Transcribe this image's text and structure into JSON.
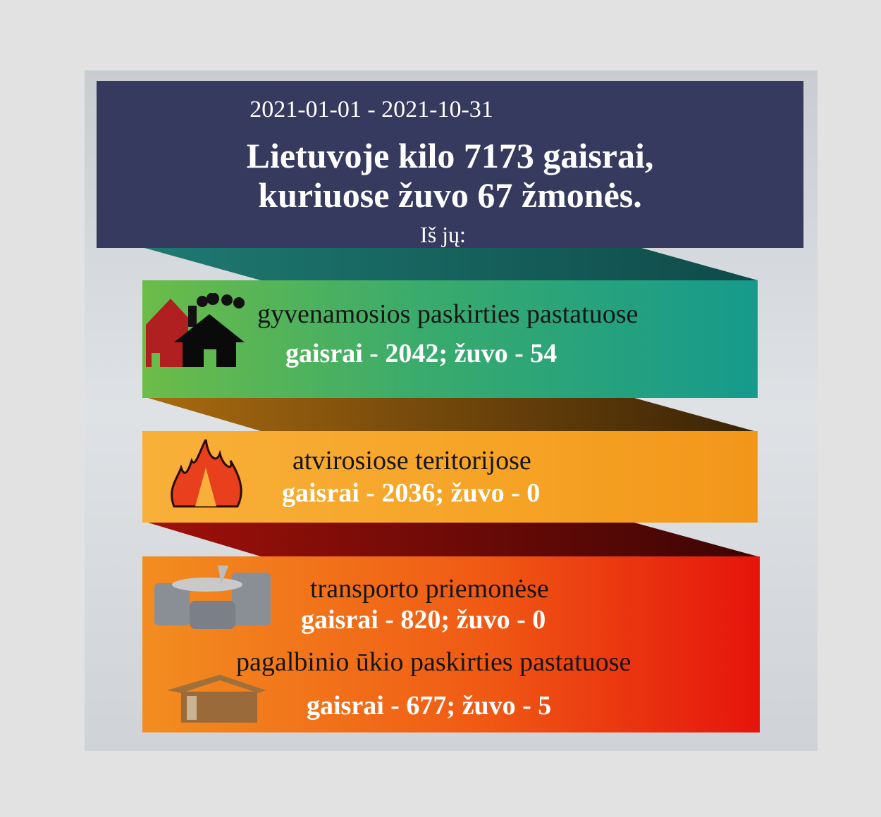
{
  "header": {
    "date_range": "2021-01-01 - 2021-10-31",
    "title_line1": "Lietuvoje kilo 7173 gaisrai,",
    "title_line2": "kuriuose žuvo 67 žmonės.",
    "subtitle": "Iš jų:"
  },
  "categories": [
    {
      "label": "gyvenamosios paskirties pastatuose",
      "stats": "gaisrai - 2042; žuvo - 54",
      "icon": "burning-house-icon",
      "color": "#3aab6c"
    },
    {
      "label": "atvirosiose teritorijose",
      "stats": "gaisrai - 2036; žuvo - 0",
      "icon": "forest-fire-icon",
      "color": "#f6a325"
    },
    {
      "label": "transporto priemonėse",
      "stats": "gaisrai - 820; žuvo - 0",
      "icon": "vehicles-icon",
      "color": "#f05a14"
    },
    {
      "label": "pagalbinio ūkio paskirties pastatuose",
      "stats": "gaisrai - 677; žuvo - 5",
      "icon": "shed-icon",
      "color": "#f05a14"
    }
  ],
  "colors": {
    "header": "#363a5e",
    "background": "#e2e2e2"
  }
}
